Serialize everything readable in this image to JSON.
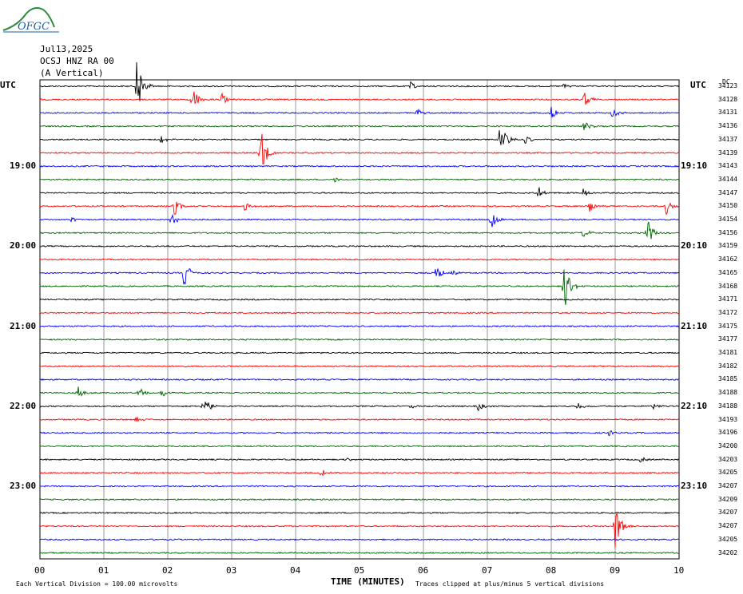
{
  "header": {
    "logo_text": "OFGC",
    "date": "Jul13,2025",
    "station": "OCSJ HNZ RA 00",
    "component": "(A Vertical)"
  },
  "utc_left_label": "UTC",
  "utc_right_label": "UTC",
  "dc_label": "DC",
  "xlabel": "TIME (MINUTES)",
  "footer_left": "Each Vertical Division =  100.00 microvolts",
  "footer_right": "Traces clipped at plus/minus 5 vertical divisions",
  "colors": {
    "black": "#000000",
    "red": "#ff0000",
    "blue": "#0000ff",
    "green": "#006400",
    "grid": "#808080"
  },
  "chart_data": {
    "type": "line",
    "xlim": [
      0,
      10
    ],
    "x_ticks": [
      "00",
      "01",
      "02",
      "03",
      "04",
      "05",
      "06",
      "07",
      "08",
      "09",
      "10"
    ],
    "left_time_labels": [
      "19:00",
      "20:00",
      "21:00",
      "22:00",
      "23:00"
    ],
    "right_time_labels": [
      "19:10",
      "20:10",
      "21:10",
      "22:10",
      "23:10"
    ],
    "dc_offsets": [
      "34123",
      "34128",
      "34131",
      "34136",
      "34137",
      "34139",
      "34143",
      "34144",
      "34147",
      "34150",
      "34154",
      "34156",
      "34159",
      "34162",
      "34165",
      "34168",
      "34171",
      "34172",
      "34175",
      "34177",
      "34181",
      "34182",
      "34185",
      "34188",
      "34188",
      "34193",
      "34196",
      "34200",
      "34203",
      "34205",
      "34207",
      "34209",
      "34207",
      "34207",
      "34205",
      "34202"
    ],
    "trace_colors": [
      "black",
      "red",
      "blue",
      "green"
    ],
    "events": [
      {
        "trace": 0,
        "minute": 1.52,
        "amp": 5
      },
      {
        "trace": 0,
        "minute": 5.8,
        "amp": 0.7
      },
      {
        "trace": 0,
        "minute": 8.2,
        "amp": 0.6
      },
      {
        "trace": 1,
        "minute": 2.38,
        "amp": 2.5
      },
      {
        "trace": 1,
        "minute": 2.85,
        "amp": 1
      },
      {
        "trace": 1,
        "minute": 8.52,
        "amp": 1.5
      },
      {
        "trace": 2,
        "minute": 5.9,
        "amp": 0.6
      },
      {
        "trace": 2,
        "minute": 8.0,
        "amp": 1
      },
      {
        "trace": 2,
        "minute": 8.95,
        "amp": 0.9
      },
      {
        "trace": 3,
        "minute": 8.52,
        "amp": 1
      },
      {
        "trace": 4,
        "minute": 1.9,
        "amp": 0.7
      },
      {
        "trace": 4,
        "minute": 7.2,
        "amp": 3.5
      },
      {
        "trace": 4,
        "minute": 7.6,
        "amp": 0.8
      },
      {
        "trace": 5,
        "minute": 3.45,
        "amp": 5
      },
      {
        "trace": 7,
        "minute": 4.6,
        "amp": 0.5
      },
      {
        "trace": 8,
        "minute": 7.8,
        "amp": 1
      },
      {
        "trace": 8,
        "minute": 8.5,
        "amp": 0.9
      },
      {
        "trace": 9,
        "minute": 2.1,
        "amp": 1.5
      },
      {
        "trace": 9,
        "minute": 3.2,
        "amp": 0.8
      },
      {
        "trace": 9,
        "minute": 8.6,
        "amp": 1.3
      },
      {
        "trace": 9,
        "minute": 9.8,
        "amp": 1.3
      },
      {
        "trace": 10,
        "minute": 0.5,
        "amp": 0.6
      },
      {
        "trace": 10,
        "minute": 2.05,
        "amp": 1.2
      },
      {
        "trace": 10,
        "minute": 7.05,
        "amp": 2.5
      },
      {
        "trace": 11,
        "minute": 8.5,
        "amp": 0.8
      },
      {
        "trace": 11,
        "minute": 9.5,
        "amp": 2.6
      },
      {
        "trace": 14,
        "minute": 2.25,
        "amp": 2.5
      },
      {
        "trace": 14,
        "minute": 6.2,
        "amp": 1.5
      },
      {
        "trace": 14,
        "minute": 6.45,
        "amp": 0.5
      },
      {
        "trace": 15,
        "minute": 8.2,
        "amp": 5
      },
      {
        "trace": 23,
        "minute": 0.6,
        "amp": 1.2
      },
      {
        "trace": 23,
        "minute": 1.55,
        "amp": 1.0
      },
      {
        "trace": 23,
        "minute": 1.9,
        "amp": 0.8
      },
      {
        "trace": 24,
        "minute": 2.55,
        "amp": 2.5
      },
      {
        "trace": 24,
        "minute": 5.8,
        "amp": 0.4
      },
      {
        "trace": 24,
        "minute": 6.85,
        "amp": 0.8
      },
      {
        "trace": 24,
        "minute": 8.4,
        "amp": 0.8
      },
      {
        "trace": 24,
        "minute": 9.6,
        "amp": 0.6
      },
      {
        "trace": 25,
        "minute": 1.5,
        "amp": 0.5
      },
      {
        "trace": 26,
        "minute": 8.9,
        "amp": 0.5
      },
      {
        "trace": 28,
        "minute": 4.8,
        "amp": 0.4
      },
      {
        "trace": 28,
        "minute": 9.4,
        "amp": 0.5
      },
      {
        "trace": 29,
        "minute": 4.4,
        "amp": 0.6
      },
      {
        "trace": 33,
        "minute": 9.0,
        "amp": 4
      }
    ]
  }
}
